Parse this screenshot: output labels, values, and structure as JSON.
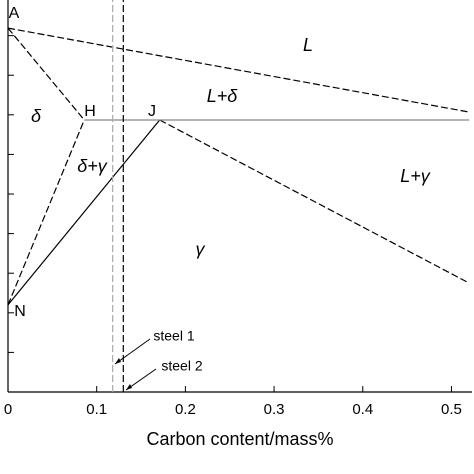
{
  "chart_data": {
    "type": "line",
    "x_label": "Carbon content/mass%",
    "xlim": [
      0,
      0.52
    ],
    "xticks": [
      0,
      0.1,
      0.2,
      0.3,
      0.4,
      0.5
    ],
    "ylim": [
      0,
      9.9
    ],
    "yticks": [
      1,
      2,
      3,
      4,
      5,
      6,
      7,
      8,
      9
    ],
    "lines": [
      {
        "x": [
          0,
          0.52
        ],
        "y": [
          9.19,
          7.07
        ],
        "style": "dashed",
        "color": "#000000"
      },
      {
        "x": [
          0,
          0.086
        ],
        "y": [
          9.19,
          6.87
        ],
        "style": "dashed",
        "color": "#000000"
      },
      {
        "x": [
          0,
          0.086
        ],
        "y": [
          2.2,
          6.87
        ],
        "style": "dashed",
        "color": "#000000"
      },
      {
        "x": [
          0,
          0.171
        ],
        "y": [
          2.2,
          6.87
        ],
        "style": "solid",
        "color": "#000000"
      },
      {
        "x": [
          0.171,
          0.52
        ],
        "y": [
          6.87,
          2.75
        ],
        "style": "dashed",
        "color": "#000000"
      },
      {
        "x": [
          0.086,
          0.52
        ],
        "y": [
          6.87,
          6.87
        ],
        "style": "solid",
        "color": "#888888"
      },
      {
        "x": [
          0.118,
          0.118
        ],
        "y": [
          0,
          9.9
        ],
        "style": "dashed",
        "color": "#aaaaaa"
      },
      {
        "x": [
          0.13,
          0.13
        ],
        "y": [
          0,
          9.9
        ],
        "style": "dashed",
        "color": "#000000"
      }
    ],
    "annotations": [
      "A",
      "H",
      "J",
      "N",
      "L",
      "L+δ",
      "δ",
      "δ+γ",
      "L+γ",
      "γ",
      "steel 1",
      "steel 2"
    ]
  }
}
